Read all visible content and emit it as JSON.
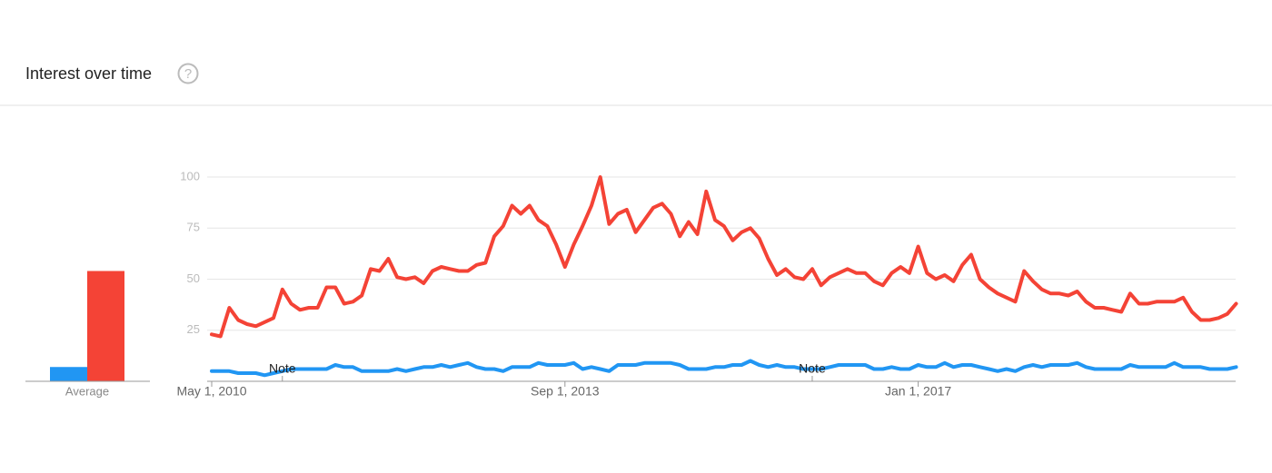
{
  "header": {
    "title": "Interest over time",
    "help_icon": "?"
  },
  "chart_data": {
    "type": "line",
    "categories": [
      "May 1, 2010",
      null,
      null,
      null,
      null,
      null,
      null,
      null,
      null,
      null,
      null,
      null,
      null,
      null,
      null,
      null,
      null,
      null,
      null,
      null,
      null,
      null,
      null,
      null,
      null,
      null,
      null,
      null,
      null,
      null,
      null,
      null,
      null,
      null,
      null,
      null,
      null,
      null,
      null,
      null,
      "Sep 1, 2013",
      null,
      null,
      null,
      null,
      null,
      null,
      null,
      null,
      null,
      null,
      null,
      null,
      null,
      null,
      null,
      null,
      null,
      null,
      null,
      null,
      null,
      null,
      null,
      null,
      null,
      null,
      null,
      null,
      null,
      null,
      null,
      null,
      null,
      null,
      null,
      null,
      null,
      null,
      null,
      "Jan 1, 2017",
      null,
      null,
      null,
      null,
      null,
      null,
      null,
      null,
      null,
      null,
      null,
      null,
      null,
      null,
      null,
      null,
      null,
      null,
      null,
      null,
      null,
      null,
      null,
      null,
      null,
      null,
      null,
      null,
      null,
      null,
      null,
      null,
      null,
      null,
      null,
      null
    ],
    "series": [
      {
        "color": "#2196f3",
        "values": [
          5,
          5,
          5,
          4,
          4,
          4,
          3,
          4,
          5,
          6,
          6,
          6,
          6,
          6,
          8,
          7,
          7,
          5,
          5,
          5,
          5,
          6,
          5,
          6,
          7,
          7,
          8,
          7,
          8,
          9,
          7,
          6,
          6,
          5,
          7,
          7,
          7,
          9,
          8,
          8,
          8,
          9,
          6,
          7,
          6,
          5,
          8,
          8,
          8,
          9,
          9,
          9,
          9,
          8,
          6,
          6,
          6,
          7,
          7,
          8,
          8,
          10,
          8,
          7,
          8,
          7,
          7,
          6,
          6,
          6,
          7,
          8,
          8,
          8,
          8,
          6,
          6,
          7,
          6,
          6,
          8,
          7,
          7,
          9,
          7,
          8,
          8,
          7,
          6,
          5,
          6,
          5,
          7,
          8,
          7,
          8,
          8,
          8,
          9,
          7,
          6,
          6,
          6,
          6,
          8,
          7,
          7,
          7,
          7,
          9,
          7,
          7,
          7,
          6,
          6,
          6,
          7
        ]
      },
      {
        "color": "#f44336",
        "values": [
          23,
          22,
          36,
          30,
          28,
          27,
          29,
          31,
          45,
          38,
          35,
          36,
          36,
          46,
          46,
          38,
          39,
          42,
          55,
          54,
          60,
          51,
          50,
          51,
          48,
          54,
          56,
          55,
          54,
          54,
          57,
          58,
          71,
          76,
          86,
          82,
          86,
          79,
          76,
          67,
          56,
          67,
          76,
          86,
          100,
          77,
          82,
          84,
          73,
          79,
          85,
          87,
          82,
          71,
          78,
          72,
          93,
          79,
          76,
          69,
          73,
          75,
          70,
          60,
          52,
          55,
          51,
          50,
          55,
          47,
          51,
          53,
          55,
          53,
          53,
          49,
          47,
          53,
          56,
          53,
          66,
          53,
          50,
          52,
          49,
          57,
          62,
          50,
          46,
          43,
          41,
          39,
          54,
          49,
          45,
          43,
          43,
          42,
          44,
          39,
          36,
          36,
          35,
          34,
          43,
          38,
          38,
          39,
          39,
          39,
          41,
          34,
          30,
          30,
          31,
          33,
          38
        ]
      }
    ],
    "average": {
      "label": "Average",
      "values": [
        7,
        54
      ]
    },
    "annotations": [
      {
        "label": "Note",
        "x": 8
      },
      {
        "label": "Note",
        "x": 68
      }
    ],
    "ylim": [
      0,
      100
    ],
    "yticks": [
      25,
      50,
      75,
      100
    ],
    "grid": true
  }
}
